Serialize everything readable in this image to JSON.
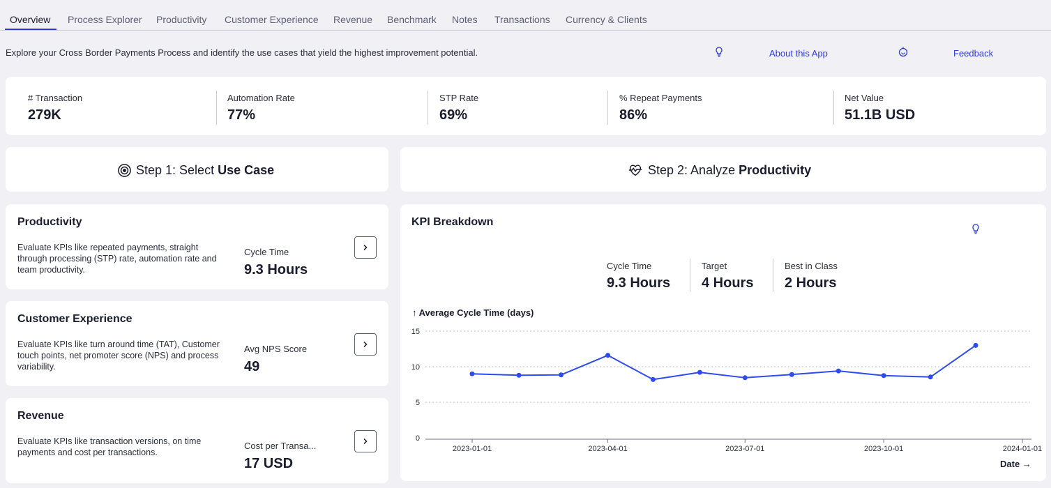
{
  "tabs": [
    "Overview",
    "Process Explorer",
    "Productivity",
    "Customer Experience",
    "Revenue",
    "Benchmark",
    "Notes",
    "Transactions",
    "Currency & Clients"
  ],
  "intro": "Explore your Cross Border Payments Process and identify the use cases that yield the highest improvement potential.",
  "links": {
    "about": "About this App",
    "feedback": "Feedback"
  },
  "kpis": [
    {
      "label": "# Transaction",
      "value": "279K"
    },
    {
      "label": "Automation Rate",
      "value": "77%"
    },
    {
      "label": "STP Rate",
      "value": "69%"
    },
    {
      "label": "% Repeat Payments",
      "value": "86%"
    },
    {
      "label": "Net Value",
      "value": "51.1B USD"
    }
  ],
  "step1": {
    "prefix": "Step 1: Select ",
    "bold": "Use Case"
  },
  "step2": {
    "prefix": "Step 2: Analyze ",
    "bold": "Productivity"
  },
  "use_cases": [
    {
      "title": "Productivity",
      "desc": "Evaluate KPIs like repeated payments, straight through processing (STP) rate, automation rate and team productivity.",
      "metric_label": "Cycle Time",
      "metric_value": "9.3 Hours"
    },
    {
      "title": "Customer Experience",
      "desc": "Evaluate KPIs like turn around time (TAT), Customer touch points, net promoter score (NPS) and process variability.",
      "metric_label": "Avg NPS Score",
      "metric_value": "49"
    },
    {
      "title": "Revenue",
      "desc": "Evaluate KPIs like transaction versions, on time payments and cost per transactions.",
      "metric_label": "Cost per Transa...",
      "metric_value": "17 USD"
    }
  ],
  "kpi_breakdown": {
    "title": "KPI Breakdown",
    "items": [
      {
        "label": "Cycle Time",
        "value": "9.3 Hours"
      },
      {
        "label": "Target",
        "value": "4 Hours"
      },
      {
        "label": "Best in Class",
        "value": "2 Hours"
      }
    ]
  },
  "chart_data": {
    "type": "line",
    "title": "",
    "ylabel": "↑ Average Cycle Time (days)",
    "xlabel": "Date →",
    "x": [
      "2023-01-01",
      "2023-02-01",
      "2023-03-01",
      "2023-04-01",
      "2023-05-01",
      "2023-06-01",
      "2023-07-01",
      "2023-08-01",
      "2023-09-01",
      "2023-10-01",
      "2023-11-01",
      "2023-12-01"
    ],
    "values": [
      9.0,
      8.8,
      8.85,
      11.6,
      8.2,
      9.2,
      8.45,
      8.9,
      9.4,
      8.75,
      8.55,
      13.0
    ],
    "ylim": [
      0,
      15
    ],
    "yticks": [
      "0",
      "5",
      "10",
      "15"
    ],
    "xticks": [
      "2023-01-01",
      "2023-04-01",
      "2023-07-01",
      "2023-10-01",
      "2024-01-01"
    ],
    "grid": true,
    "color": "#2e4bf0"
  }
}
